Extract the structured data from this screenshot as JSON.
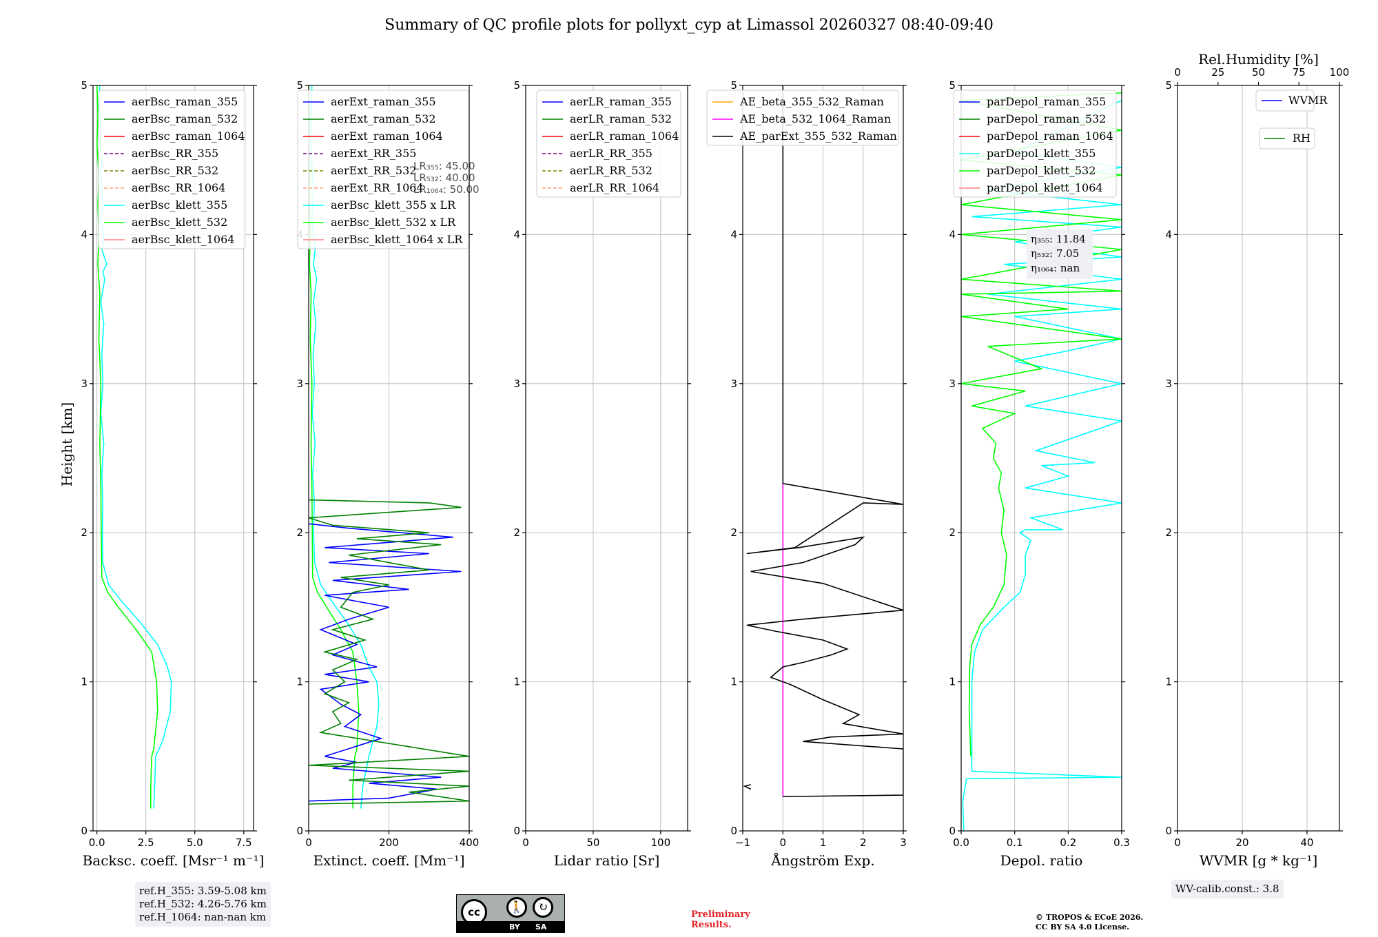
{
  "figure": {
    "title": "Summary of QC profile plots for pollyxt_cyp at Limassol 20260327 08:40-09:40",
    "ylabel": "Height [km]",
    "ref_heights": [
      "ref.H_355: 3.59-5.08 km",
      "ref.H_532: 4.26-5.76 km",
      "ref.H_1064: nan-nan km"
    ],
    "wv_calib": "WV-calib.const.: 3.8",
    "preliminary": [
      "Preliminary",
      "Results."
    ],
    "copyright": [
      "© TROPOS & ECoE 2026.",
      "CC BY SA 4.0 License."
    ],
    "license_badge": {
      "cc": "cc",
      "by": "BY",
      "sa": "SA"
    },
    "colors": {
      "grid": "#bfbfbf",
      "info_box": "#eff0f3",
      "preliminary": "#e3242b"
    }
  },
  "chart_data": [
    {
      "type": "line",
      "name": "backscatter",
      "xlabel": "Backsc. coeff. [Msr⁻¹ m⁻¹]",
      "xlim": [
        -0.2,
        8
      ],
      "xticks": [
        0,
        2.5,
        5,
        7.5
      ],
      "xtick_labels": [
        "0.0",
        "2.5",
        "5.0",
        "7.5"
      ],
      "ylim": [
        0,
        5
      ],
      "yticks": [
        0,
        1,
        2,
        3,
        4,
        5
      ],
      "legend": [
        {
          "label": "aerBsc_raman_355",
          "color": "#0000ff",
          "dash": false
        },
        {
          "label": "aerBsc_raman_532",
          "color": "#008000",
          "dash": false
        },
        {
          "label": "aerBsc_raman_1064",
          "color": "#ff0000",
          "dash": false
        },
        {
          "label": "aerBsc_RR_355",
          "color": "#800080",
          "dash": true
        },
        {
          "label": "aerBsc_RR_532",
          "color": "#808000",
          "dash": true
        },
        {
          "label": "aerBsc_RR_1064",
          "color": "#ffa07a",
          "dash": true
        },
        {
          "label": "aerBsc_klett_355",
          "color": "#00ffff",
          "dash": false
        },
        {
          "label": "aerBsc_klett_532",
          "color": "#00ff00",
          "dash": false
        },
        {
          "label": "aerBsc_klett_1064",
          "color": "#ff8080",
          "dash": false
        }
      ],
      "series": [
        {
          "name": "aerBsc_klett_355",
          "color": "#00ffff",
          "x": [
            2.9,
            2.95,
            3.0,
            3.35,
            3.75,
            3.8,
            3.6,
            3.1,
            2.2,
            1.2,
            0.6,
            0.3,
            0.28,
            0.3,
            0.25,
            0.35,
            0.2,
            0.3,
            0.25,
            0.35,
            0.2,
            0.4,
            0.3,
            0.5,
            0.25,
            0.35,
            0.2,
            0.3,
            0.2,
            0.25,
            0.15,
            0.2,
            0.1,
            0.15
          ],
          "y": [
            0.15,
            0.3,
            0.5,
            0.6,
            0.8,
            1.0,
            1.1,
            1.25,
            1.4,
            1.55,
            1.65,
            1.8,
            2.0,
            2.2,
            2.4,
            2.6,
            2.8,
            3.0,
            3.2,
            3.4,
            3.55,
            3.7,
            3.75,
            3.8,
            3.9,
            4.0,
            4.1,
            4.2,
            4.4,
            4.5,
            4.6,
            4.75,
            4.9,
            5.0
          ]
        },
        {
          "name": "aerBsc_klett_532",
          "color": "#00ff00",
          "x": [
            2.75,
            2.75,
            2.8,
            2.9,
            3.1,
            3.05,
            2.8,
            2.0,
            1.1,
            0.55,
            0.25,
            0.22,
            0.2,
            0.15,
            0.2,
            0.1,
            0.15,
            0.05,
            0.1,
            0.05,
            0.1,
            0.0,
            0.05,
            0.0
          ],
          "y": [
            0.15,
            0.3,
            0.5,
            0.55,
            0.8,
            1.0,
            1.2,
            1.35,
            1.5,
            1.6,
            1.7,
            2.0,
            2.3,
            2.6,
            3.0,
            3.3,
            3.6,
            3.8,
            4.0,
            4.2,
            4.4,
            4.6,
            4.8,
            5.0
          ]
        }
      ]
    },
    {
      "type": "line",
      "name": "extinction",
      "xlabel": "Extinct. coeff. [Mm⁻¹]",
      "xlim": [
        0,
        400
      ],
      "xticks": [
        0,
        200,
        400
      ],
      "xtick_labels": [
        "0",
        "200",
        "400"
      ],
      "ylim": [
        0,
        5
      ],
      "yticks": [
        0,
        1,
        2,
        3,
        4,
        5
      ],
      "legend": [
        {
          "label": "aerExt_raman_355",
          "color": "#0000ff",
          "dash": false
        },
        {
          "label": "aerExt_raman_532",
          "color": "#008000",
          "dash": false
        },
        {
          "label": "aerExt_raman_1064",
          "color": "#ff0000",
          "dash": false
        },
        {
          "label": "aerExt_RR_355",
          "color": "#800080",
          "dash": true
        },
        {
          "label": "aerExt_RR_532",
          "color": "#808000",
          "dash": true
        },
        {
          "label": "aerExt_RR_1064",
          "color": "#ffa07a",
          "dash": true
        },
        {
          "label": "aerBsc_klett_355 x LR",
          "color": "#00ffff",
          "dash": false
        },
        {
          "label": "aerBsc_klett_532 x LR",
          "color": "#00ff00",
          "dash": false
        },
        {
          "label": "aerBsc_klett_1064 x LR",
          "color": "#ff8080",
          "dash": false
        }
      ],
      "lr_note": [
        "LR₃₅₅: 45.00",
        "LR₅₃₂: 40.00",
        "LR₁₀₆₄: 50.00"
      ],
      "series": [
        {
          "name": "aerBsc_klett_355 x LR",
          "color": "#00ffff",
          "x": [
            130,
            135,
            150,
            170,
            175,
            170,
            150,
            130,
            95,
            55,
            30,
            15,
            12,
            14,
            10,
            16,
            9,
            14,
            11,
            18,
            12,
            20,
            12,
            16,
            8,
            12,
            5,
            8
          ],
          "y": [
            0.15,
            0.3,
            0.5,
            0.7,
            0.85,
            1.0,
            1.1,
            1.25,
            1.4,
            1.55,
            1.65,
            1.8,
            2.0,
            2.2,
            2.4,
            2.6,
            2.8,
            3.0,
            3.2,
            3.4,
            3.55,
            3.7,
            3.8,
            3.9,
            4.1,
            4.3,
            4.6,
            5.0
          ]
        },
        {
          "name": "aerBsc_klett_532 x LR",
          "color": "#00ff00",
          "x": [
            110,
            110,
            115,
            120,
            125,
            120,
            110,
            80,
            45,
            22,
            10,
            9,
            8,
            6,
            8,
            4,
            6,
            2,
            4,
            2,
            3,
            0,
            2,
            0
          ],
          "y": [
            0.15,
            0.3,
            0.5,
            0.55,
            0.8,
            1.0,
            1.2,
            1.35,
            1.5,
            1.6,
            1.7,
            2.0,
            2.3,
            2.6,
            3.0,
            3.3,
            3.6,
            3.8,
            4.0,
            4.2,
            4.4,
            4.6,
            4.8,
            5.0
          ]
        },
        {
          "name": "aerExt_raman_355",
          "color": "#0000ff",
          "x": [
            0,
            200,
            320,
            150,
            330,
            60,
            120,
            40,
            180,
            90,
            130,
            80,
            30,
            150,
            40,
            170,
            60,
            120,
            30,
            100,
            200,
            40,
            250,
            60,
            380,
            50,
            300,
            40,
            360,
            100,
            0
          ],
          "y": [
            0.2,
            0.22,
            0.28,
            0.32,
            0.36,
            0.42,
            0.46,
            0.5,
            0.62,
            0.7,
            0.78,
            0.85,
            0.95,
            1.0,
            1.05,
            1.1,
            1.18,
            1.25,
            1.35,
            1.42,
            1.5,
            1.58,
            1.62,
            1.68,
            1.74,
            1.8,
            1.86,
            1.9,
            1.97,
            2.03,
            2.06
          ]
        },
        {
          "name": "aerExt_raman_532",
          "color": "#008000",
          "x": [
            0,
            400,
            250,
            400,
            100,
            400,
            0,
            400,
            30,
            80,
            60,
            100,
            40,
            90,
            60,
            120,
            40,
            140,
            60,
            160,
            80,
            110,
            200,
            80,
            300,
            100,
            330,
            120,
            300,
            60,
            0,
            380,
            300,
            0
          ],
          "y": [
            0.18,
            0.2,
            0.26,
            0.3,
            0.34,
            0.4,
            0.44,
            0.5,
            0.66,
            0.72,
            0.8,
            0.86,
            0.92,
            1.0,
            1.08,
            1.15,
            1.2,
            1.28,
            1.35,
            1.42,
            1.5,
            1.6,
            1.65,
            1.7,
            1.75,
            1.85,
            1.92,
            1.96,
            2.0,
            2.05,
            2.1,
            2.17,
            2.2,
            2.22
          ]
        }
      ]
    },
    {
      "type": "line",
      "name": "lidar_ratio",
      "xlabel": "Lidar ratio [Sr]",
      "xlim": [
        0,
        120
      ],
      "xticks": [
        0,
        50,
        100
      ],
      "xtick_labels": [
        "0",
        "50",
        "100"
      ],
      "ylim": [
        0,
        5
      ],
      "yticks": [
        0,
        1,
        2,
        3,
        4,
        5
      ],
      "legend": [
        {
          "label": "aerLR_raman_355",
          "color": "#0000ff",
          "dash": false
        },
        {
          "label": "aerLR_raman_532",
          "color": "#008000",
          "dash": false
        },
        {
          "label": "aerLR_raman_1064",
          "color": "#ff0000",
          "dash": false
        },
        {
          "label": "aerLR_RR_355",
          "color": "#800080",
          "dash": true
        },
        {
          "label": "aerLR_RR_532",
          "color": "#808000",
          "dash": true
        },
        {
          "label": "aerLR_RR_1064",
          "color": "#ffa07a",
          "dash": true
        }
      ],
      "series": []
    },
    {
      "type": "line",
      "name": "angstrom",
      "xlabel": "Ångström Exp.",
      "xlim": [
        -1,
        3
      ],
      "xticks": [
        -1,
        0,
        1,
        2,
        3
      ],
      "xtick_labels": [
        "−1",
        "0",
        "1",
        "2",
        "3"
      ],
      "ylim": [
        0,
        5
      ],
      "yticks": [
        0,
        1,
        2,
        3,
        4,
        5
      ],
      "legend": [
        {
          "label": "AE_beta_355_532_Raman",
          "color": "#ffa500",
          "dash": false
        },
        {
          "label": "AE_beta_532_1064_Raman",
          "color": "#ff00ff",
          "dash": false
        },
        {
          "label": "AE_parExt_355_532_Raman",
          "color": "#000000",
          "dash": false
        }
      ],
      "series": [
        {
          "name": "AE_beta_532_1064_Raman",
          "color": "#ff00ff",
          "x": [
            0,
            0
          ],
          "y": [
            0.23,
            2.33
          ]
        },
        {
          "name": "AE_parExt_355_532_Raman",
          "color": "#000000",
          "x": [
            0,
            3,
            3,
            0.5,
            1.2,
            3,
            1.5,
            1.9,
            1.0,
            0.2,
            -0.3,
            0.0,
            0.5,
            1.2,
            1.6,
            1.0,
            -0.2,
            -0.9,
            0.5,
            3,
            1.0,
            -0.8,
            0.5,
            1.8,
            2.0,
            0.4,
            -0.9,
            0.3,
            2.0,
            3,
            0
          ],
          "y": [
            0.23,
            0.24,
            0.55,
            0.6,
            0.63,
            0.65,
            0.72,
            0.78,
            0.88,
            0.98,
            1.03,
            1.1,
            1.13,
            1.18,
            1.22,
            1.28,
            1.34,
            1.38,
            1.42,
            1.48,
            1.66,
            1.74,
            1.8,
            1.92,
            1.97,
            1.9,
            1.86,
            1.9,
            2.2,
            2.19,
            2.33
          ]
        },
        {
          "name": "AE_parExt_355_532_Raman_upper",
          "color": "#000000",
          "x": [
            0,
            0
          ],
          "y": [
            2.33,
            5.0
          ]
        },
        {
          "name": "AE_parExt_355_532_Raman_low",
          "color": "#000000",
          "x": [
            -0.8,
            -0.95,
            -0.8
          ],
          "y": [
            0.28,
            0.3,
            0.31
          ]
        }
      ]
    },
    {
      "type": "line",
      "name": "depolarization",
      "xlabel": "Depol. ratio",
      "xlim": [
        0,
        0.3
      ],
      "xticks": [
        0,
        0.1,
        0.2,
        0.3
      ],
      "xtick_labels": [
        "0.0",
        "0.1",
        "0.2",
        "0.3"
      ],
      "ylim": [
        0,
        5
      ],
      "yticks": [
        0,
        1,
        2,
        3,
        4,
        5
      ],
      "legend": [
        {
          "label": "parDepol_raman_355",
          "color": "#0000ff",
          "dash": false
        },
        {
          "label": "parDepol_raman_532",
          "color": "#008000",
          "dash": false
        },
        {
          "label": "parDepol_raman_1064",
          "color": "#ff0000",
          "dash": false
        },
        {
          "label": "parDepol_klett_355",
          "color": "#00ffff",
          "dash": false
        },
        {
          "label": "parDepol_klett_532",
          "color": "#00ff00",
          "dash": false
        },
        {
          "label": "parDepol_klett_1064",
          "color": "#ff8080",
          "dash": false
        }
      ],
      "eta": [
        "η₃₅₅: 11.84",
        "η₅₃₂: 7.05",
        "η₁₀₆₄: nan"
      ],
      "series": [
        {
          "name": "parDepol_klett_355",
          "color": "#00ffff",
          "x": [
            0.005,
            0.003,
            0.01,
            0.3,
            0.02,
            0.02,
            0.025,
            0.04,
            0.08,
            0.11,
            0.12,
            0.12,
            0.13,
            0.11,
            0.12,
            0.19,
            0.13,
            0.3,
            0.12,
            0.2,
            0.15,
            0.25,
            0.14,
            0.3,
            0.12,
            0.3,
            0.1,
            0.2,
            0.3,
            0.1,
            0.3,
            0.05,
            0.3,
            0.08,
            0.3,
            0.1,
            0.3,
            0.02,
            0.3,
            0.05,
            0.3,
            0.1,
            0.3
          ],
          "y": [
            0.0,
            0.2,
            0.35,
            0.36,
            0.4,
            1.0,
            1.2,
            1.35,
            1.5,
            1.6,
            1.72,
            1.85,
            1.95,
            2.0,
            2.02,
            2.02,
            2.1,
            2.2,
            2.3,
            2.38,
            2.45,
            2.47,
            2.55,
            2.75,
            2.85,
            3.0,
            3.15,
            3.22,
            3.3,
            3.45,
            3.5,
            3.6,
            3.7,
            3.8,
            3.85,
            3.95,
            4.05,
            4.12,
            4.2,
            4.3,
            4.45,
            4.55,
            4.9
          ]
        },
        {
          "name": "parDepol_klett_532",
          "color": "#00ff00",
          "x": [
            0.018,
            0.015,
            0.016,
            0.02,
            0.035,
            0.06,
            0.08,
            0.085,
            0.075,
            0.08,
            0.07,
            0.075,
            0.06,
            0.065,
            0.04,
            0.1,
            0.02,
            0.12,
            0.0,
            0.15,
            0.05,
            0.3,
            0.0,
            0.2,
            0.0,
            0.3,
            0.0,
            0.3,
            0.0,
            0.3,
            0.0,
            0.3,
            0.0,
            0.3,
            0.0,
            0.3
          ],
          "y": [
            0.5,
            0.8,
            1.1,
            1.25,
            1.38,
            1.5,
            1.65,
            1.85,
            2.0,
            2.15,
            2.3,
            2.4,
            2.5,
            2.6,
            2.7,
            2.8,
            2.85,
            2.95,
            3.0,
            3.1,
            3.25,
            3.3,
            3.45,
            3.5,
            3.6,
            3.62,
            3.7,
            3.9,
            4.0,
            4.1,
            4.2,
            4.4,
            4.5,
            4.7,
            4.9,
            4.95
          ]
        }
      ]
    },
    {
      "type": "line",
      "name": "water_vapor",
      "xlabel": "WVMR [g * kg⁻¹]",
      "top_xlabel": "Rel.Humidity [%]",
      "xlim": [
        0,
        50
      ],
      "xticks": [
        0,
        20,
        40
      ],
      "xtick_labels": [
        "0",
        "20",
        "40"
      ],
      "top_xlim": [
        0,
        100
      ],
      "top_xticks": [
        0,
        25,
        50,
        75,
        100
      ],
      "top_xtick_labels": [
        "0",
        "25",
        "50",
        "75",
        "100"
      ],
      "ylim": [
        0,
        5
      ],
      "yticks": [
        0,
        1,
        2,
        3,
        4,
        5
      ],
      "legend_wvmr": {
        "label": "WVMR",
        "color": "#0000ff"
      },
      "legend_rh": {
        "label": "RH",
        "color": "#008000"
      },
      "series": []
    }
  ]
}
